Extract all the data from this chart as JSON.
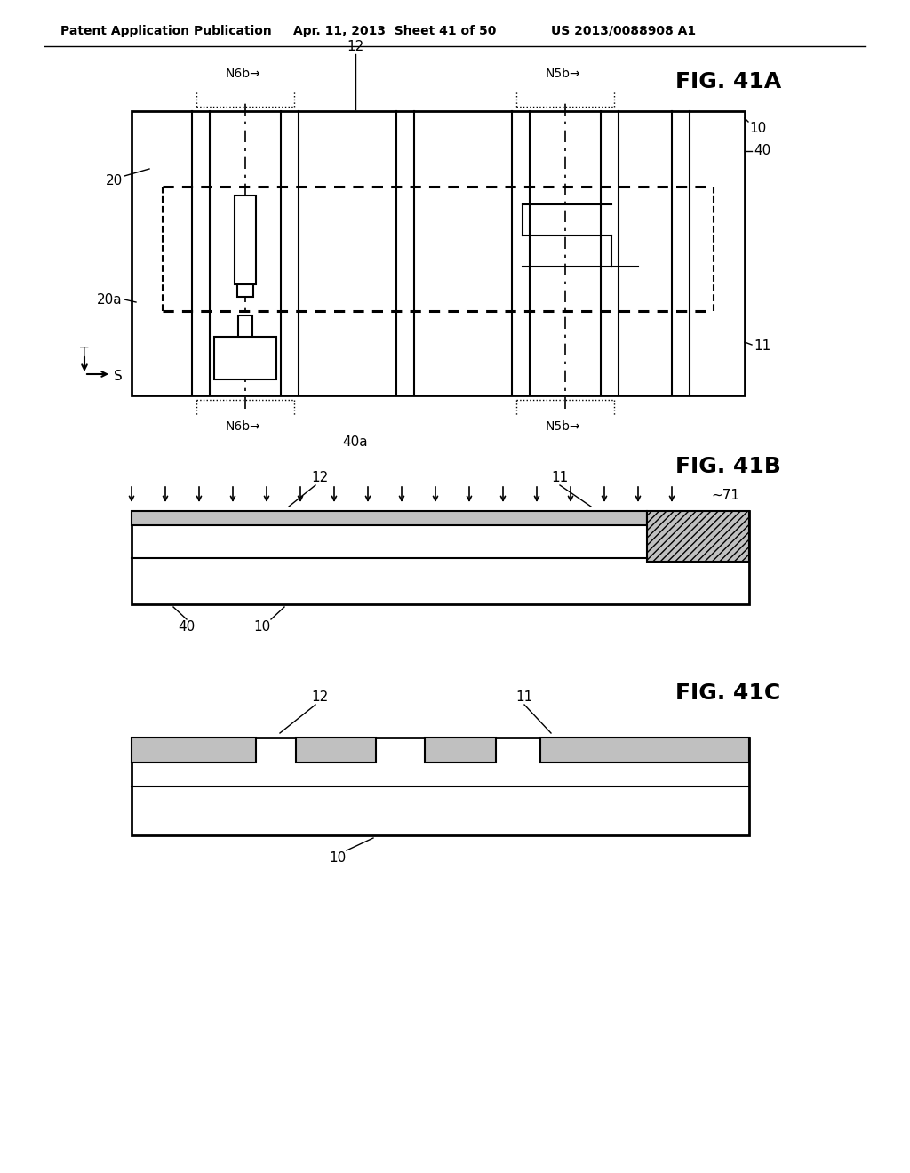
{
  "header_left": "Patent Application Publication",
  "header_mid": "Apr. 11, 2013  Sheet 41 of 50",
  "header_right": "US 2013/0088908 A1",
  "bg_color": "#ffffff",
  "line_color": "#000000",
  "gray_fill": "#c0c0c0"
}
